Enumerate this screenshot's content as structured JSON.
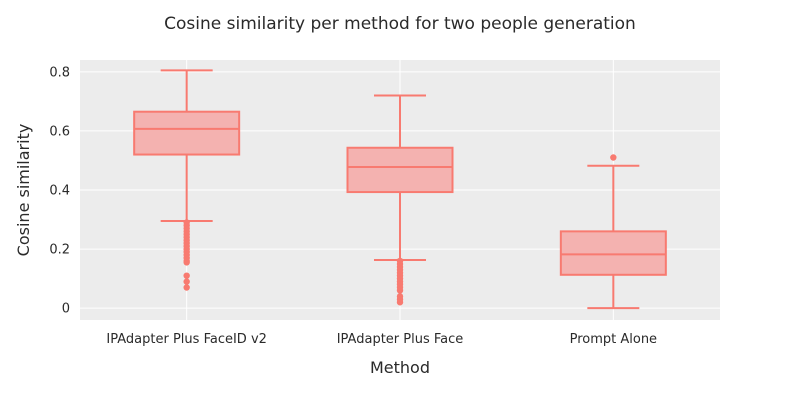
{
  "chart_data": {
    "type": "box",
    "title": "Cosine similarity per method for two people generation",
    "xlabel": "Method",
    "ylabel": "Cosine similarity",
    "ylim": [
      -0.04,
      0.84
    ],
    "yticks": [
      0,
      0.2,
      0.4,
      0.6,
      0.8
    ],
    "ytick_labels": [
      "0",
      "0.2",
      "0.4",
      "0.6",
      "0.8"
    ],
    "categories": [
      "IPAdapter Plus FaceID v2",
      "IPAdapter Plus Face",
      "Prompt Alone"
    ],
    "grid": true,
    "colors": {
      "box_fill": "#f4b2b0",
      "box_line": "#f87a70",
      "plot_bg": "#ececec",
      "grid": "#ffffff"
    },
    "boxes": [
      {
        "category": "IPAdapter Plus FaceID v2",
        "min": 0.295,
        "q1": 0.52,
        "median": 0.607,
        "q3": 0.665,
        "max": 0.805,
        "outliers": [
          0.29,
          0.28,
          0.27,
          0.26,
          0.25,
          0.24,
          0.23,
          0.22,
          0.21,
          0.2,
          0.19,
          0.18,
          0.17,
          0.16,
          0.155,
          0.11,
          0.09,
          0.07
        ]
      },
      {
        "category": "IPAdapter Plus Face",
        "min": 0.163,
        "q1": 0.393,
        "median": 0.478,
        "q3": 0.543,
        "max": 0.72,
        "outliers": [
          0.16,
          0.15,
          0.14,
          0.13,
          0.12,
          0.11,
          0.1,
          0.09,
          0.08,
          0.07,
          0.06,
          0.04,
          0.03,
          0.02
        ]
      },
      {
        "category": "Prompt Alone",
        "min": 0.0,
        "q1": 0.113,
        "median": 0.182,
        "q3": 0.26,
        "max": 0.482,
        "outliers": [
          0.51
        ]
      }
    ]
  }
}
